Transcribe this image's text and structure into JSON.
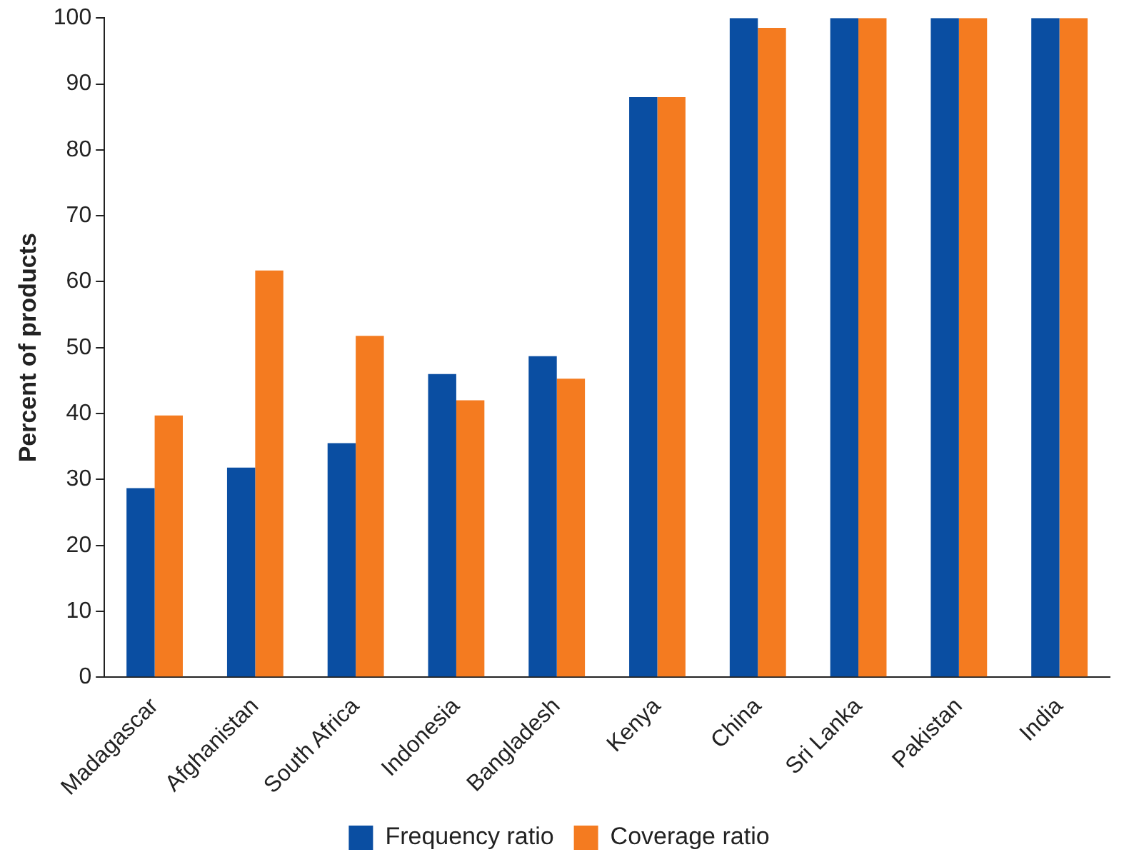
{
  "chart_data": {
    "type": "bar",
    "ylabel": "Percent of products",
    "categories": [
      "Madagascar",
      "Afghanistan",
      "South Africa",
      "Indonesia",
      "Bangladesh",
      "Kenya",
      "China",
      "Sri Lanka",
      "Pakistan",
      "India"
    ],
    "series": [
      {
        "name": "Frequency ratio",
        "color": "#0a4ea2",
        "values": [
          28.7,
          31.8,
          35.5,
          46,
          48.7,
          88,
          100,
          100,
          100,
          100
        ]
      },
      {
        "name": "Coverage ratio",
        "color": "#f47b20",
        "values": [
          39.7,
          61.7,
          51.8,
          42,
          45.3,
          88,
          98.5,
          100,
          100,
          100
        ]
      }
    ],
    "ylim": [
      0,
      100
    ],
    "yticks": [
      0,
      10,
      20,
      30,
      40,
      50,
      60,
      70,
      80,
      90,
      100
    ],
    "grid": false,
    "legend": "bottom"
  }
}
